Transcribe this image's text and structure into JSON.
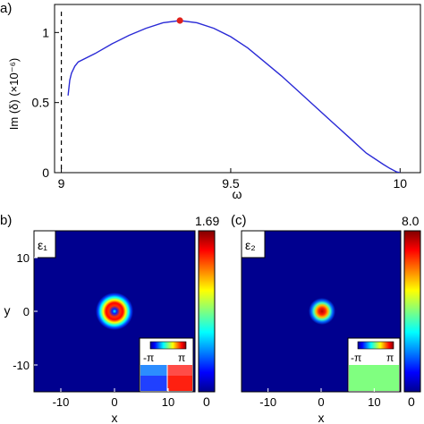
{
  "panels": {
    "a_label": "a)",
    "b_label": "b)",
    "c_label": "(c)"
  },
  "chart_data": [
    {
      "panel": "a",
      "type": "line",
      "xlabel": "ω",
      "ylabel": "Im (δ) (×10⁻⁶)",
      "xlim": [
        8.98,
        10.06
      ],
      "ylim": [
        0,
        1.2
      ],
      "xticks": [
        "9",
        "9.5",
        "10"
      ],
      "xtick_values": [
        9,
        9.5,
        10
      ],
      "yticks": [
        "0",
        "0.5",
        "1"
      ],
      "ytick_values": [
        0,
        0.5,
        1
      ],
      "dashed_vline_x": 9.0,
      "series": [
        {
          "color": "#2a2ad6",
          "x": [
            9.02,
            9.025,
            9.03,
            9.04,
            9.05,
            9.1,
            9.15,
            9.2,
            9.25,
            9.3,
            9.35,
            9.4,
            9.45,
            9.5,
            9.55,
            9.6,
            9.65,
            9.7,
            9.75,
            9.8,
            9.85,
            9.9,
            9.95,
            9.97,
            9.99,
            10.0
          ],
          "y": [
            0.55,
            0.66,
            0.71,
            0.76,
            0.79,
            0.85,
            0.92,
            0.98,
            1.03,
            1.07,
            1.085,
            1.07,
            1.03,
            0.97,
            0.89,
            0.79,
            0.69,
            0.58,
            0.47,
            0.36,
            0.25,
            0.14,
            0.06,
            0.03,
            0.005,
            0.0
          ]
        }
      ],
      "marker": {
        "x": 9.35,
        "y": 1.085,
        "color": "#e0201b"
      }
    },
    {
      "panel": "b",
      "type": "heatmap",
      "inset_label": "ε₁",
      "xlabel": "x",
      "ylabel": "y",
      "xlim": [
        -15,
        15
      ],
      "ylim": [
        -15,
        15
      ],
      "xticks": [
        "-10",
        "0",
        "10"
      ],
      "xtick_values": [
        -10,
        0,
        10
      ],
      "yticks": [
        "10",
        "0",
        "-10"
      ],
      "ytick_values": [
        10,
        0,
        -10
      ],
      "colorbar_max": "1.69",
      "colorbar_min": "0",
      "phase_inset_labels": [
        "-π",
        "π"
      ],
      "background": "#00008f"
    },
    {
      "panel": "c",
      "type": "heatmap",
      "inset_label": "ε₂",
      "xlabel": "x",
      "xlim": [
        -15,
        15
      ],
      "ylim": [
        -15,
        15
      ],
      "xticks": [
        "-10",
        "0",
        "10"
      ],
      "xtick_values": [
        -10,
        0,
        10
      ],
      "colorbar_max": "8.0",
      "colorbar_min": "0",
      "phase_inset_labels": [
        "-π",
        "π"
      ],
      "background": "#00008f"
    }
  ]
}
